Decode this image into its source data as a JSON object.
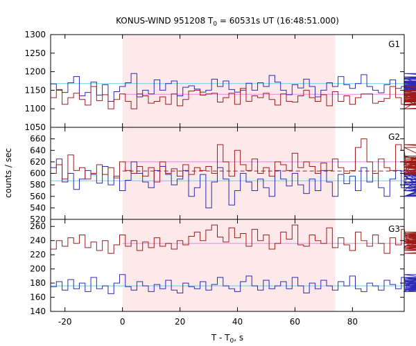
{
  "chart_data": {
    "type": "line",
    "title_parts": [
      "KONUS-WIND 951208 T",
      "0",
      " = 60531s UT (16:48:51.000)"
    ],
    "xlabel_parts": [
      "T - T",
      "0",
      ", s"
    ],
    "ylabel": "counts / sec",
    "xlim": [
      -25,
      98
    ],
    "bin_width": 2.0,
    "bin_start": -25,
    "x_ticks": [
      -20,
      0,
      20,
      40,
      60,
      80
    ],
    "x_tick_labels": [
      "-20",
      "0",
      "20",
      "40",
      "60",
      "80"
    ],
    "shaded_interval": [
      0,
      74
    ],
    "colors": {
      "series_upper": "#a01a1a",
      "series_lower": "#2a2ab4",
      "ref_upper": "#ee82ee",
      "ref_lower": "#5bd5e8",
      "shade": "#fde8ea"
    },
    "panels": [
      {
        "label": "G1",
        "ylim": [
          1050,
          1300
        ],
        "y_ticks": [
          1050,
          1100,
          1150,
          1200,
          1250,
          1300
        ],
        "series": [
          {
            "color_key": "series_lower",
            "values": [
              1167,
              1152,
              1144,
              1170,
              1187,
              1135,
              1144,
              1172,
              1137,
              1165,
              1120,
              1146,
              1160,
              1170,
              1195,
              1132,
              1150,
              1140,
              1178,
              1150,
              1168,
              1175,
              1135,
              1158,
              1162,
              1153,
              1145,
              1150,
              1180,
              1160,
              1175,
              1152,
              1145,
              1150,
              1169,
              1150,
              1170,
              1160,
              1190,
              1172,
              1150,
              1138,
              1165,
              1156,
              1180,
              1160,
              1132,
              1150,
              1170,
              1160,
              1187,
              1165,
              1155,
              1168,
              1192,
              1160,
              1150,
              1143,
              1165,
              1178,
              1155,
              1160,
              1150,
              1175,
              1165,
              1145,
              1182,
              1155,
              1152,
              1175,
              1162,
              1150,
              1170,
              1160,
              1148,
              1155,
              1160,
              1157,
              1165,
              1140,
              1175,
              1152,
              1160,
              1195,
              1172,
              1140,
              1160,
              1175,
              1150,
              1165,
              1186,
              1160,
              1170,
              1150,
              1168,
              1173,
              1160,
              1175,
              1183,
              1165,
              1150,
              1170,
              1180,
              1162,
              1152,
              1160,
              1175,
              1168,
              1150,
              1165,
              1170,
              1155,
              1160,
              1172,
              1148,
              1160,
              1170,
              1165,
              1158,
              1180,
              1160,
              1152,
              1170
            ]
          },
          {
            "color_key": "series_upper",
            "values": [
              1130,
              1150,
              1112,
              1130,
              1142,
              1125,
              1110,
              1160,
              1122,
              1138,
              1100,
              1125,
              1140,
              1120,
              1100,
              1140,
              1135,
              1115,
              1120,
              1132,
              1112,
              1140,
              1108,
              1125,
              1148,
              1150,
              1137,
              1140,
              1142,
              1118,
              1130,
              1142,
              1112,
              1155,
              1120,
              1135,
              1130,
              1142,
              1125,
              1110,
              1140,
              1120,
              1118,
              1135,
              1150,
              1130,
              1120,
              1138,
              1108,
              1146,
              1120,
              1135,
              1112,
              1130,
              1140,
              1140,
              1115,
              1120,
              1128,
              1160,
              1130,
              1112,
              1142,
              1135,
              1125,
              1100,
              1140,
              1118,
              1130,
              1150,
              1120,
              1140,
              1125,
              1112,
              1128,
              1138,
              1122,
              1140,
              1136,
              1120,
              1130,
              1148,
              1110,
              1125,
              1140,
              1100,
              1118,
              1140,
              1160,
              1130,
              1120,
              1125,
              1138,
              1110,
              1132,
              1140,
              1125,
              1136,
              1150,
              1120,
              1130,
              1112,
              1130,
              1140,
              1132,
              1125,
              1150,
              1130,
              1138,
              1140,
              1125,
              1142,
              1120,
              1128,
              1135,
              1140,
              1125,
              1138,
              1130,
              1145,
              1122,
              1130,
              1140
            ]
          }
        ],
        "ref_lines": [
          {
            "y": 1168,
            "color_key": "ref_lower",
            "dashed": false,
            "from": -25,
            "to": 98
          },
          {
            "y": 1139,
            "color_key": "ref_upper",
            "dashed": false,
            "from": 0,
            "to": 98
          }
        ]
      },
      {
        "label": "G2",
        "ylim": [
          520,
          680
        ],
        "y_ticks": [
          520,
          540,
          560,
          580,
          600,
          620,
          640,
          660
        ],
        "series": [
          {
            "color_key": "series_lower",
            "values": [
              610,
              625,
              585,
              600,
              572,
              590,
              605,
              598,
              583,
              612,
              580,
              595,
              570,
              588,
              620,
              600,
              585,
              575,
              605,
              612,
              598,
              580,
              590,
              605,
              560,
              575,
              598,
              540,
              585,
              610,
              590,
              545,
              570,
              600,
              585,
              570,
              590,
              575,
              560,
              605,
              590,
              578,
              600,
              580,
              565,
              590,
              570,
              605,
              585,
              560,
              598,
              582,
              595,
              570,
              610,
              585,
              600,
              575,
              560,
              590,
              605,
              575,
              598,
              585,
              570,
              600,
              580,
              595,
              560,
              590,
              605,
              575,
              560,
              598,
              585,
              570,
              560,
              600,
              585,
              575,
              598,
              605,
              580,
              570,
              590,
              575,
              600,
              585,
              560,
              598,
              575,
              590,
              600,
              560,
              585,
              570,
              598,
              580,
              600,
              590,
              575,
              610,
              585,
              590,
              575,
              600,
              590,
              570,
              560,
              585,
              598,
              580,
              570,
              600,
              590,
              585,
              575,
              598,
              560,
              585,
              600,
              575,
              590
            ]
          },
          {
            "color_key": "series_upper",
            "values": [
              600,
              615,
              590,
              632,
              605,
              610,
              590,
              600,
              615,
              598,
              610,
              592,
              620,
              605,
              600,
              612,
              595,
              610,
              585,
              620,
              600,
              608,
              595,
              615,
              598,
              610,
              605,
              612,
              600,
              650,
              620,
              595,
              640,
              615,
              605,
              625,
              600,
              610,
              595,
              620,
              615,
              605,
              635,
              610,
              620,
              612,
              600,
              618,
              605,
              625,
              610,
              600,
              605,
              645,
              660,
              620,
              600,
              625,
              610,
              605,
              650,
              640,
              600,
              615,
              630,
              620,
              605,
              650,
              645,
              610,
              600,
              620,
              605,
              612,
              630,
              600,
              615,
              622,
              605,
              610,
              600,
              625,
              612,
              598,
              605,
              620,
              600,
              610,
              628,
              605,
              615,
              600,
              622,
              610,
              605,
              618,
              600,
              612,
              605,
              615,
              620,
              600,
              610,
              605,
              618,
              600,
              612,
              620,
              605,
              600,
              615,
              610,
              605,
              618,
              600,
              612,
              605,
              620,
              610,
              605,
              615,
              600,
              612
            ]
          }
        ],
        "ref_lines": [
          {
            "y": 587,
            "color_key": "ref_lower",
            "dashed": false,
            "from": -25,
            "to": 98
          },
          {
            "y": 604,
            "color_key": "series_upper",
            "dashed": true,
            "from": 0,
            "to": 98
          },
          {
            "y": 620,
            "color_key": "ref_upper",
            "dashed": false,
            "from": 0,
            "to": 98
          }
        ]
      },
      {
        "label": "G3",
        "ylim": [
          140,
          270
        ],
        "y_ticks": [
          140,
          160,
          180,
          200,
          220,
          240,
          260
        ],
        "series": [
          {
            "color_key": "series_upper",
            "values": [
              228,
              240,
              232,
              244,
              236,
              248,
              230,
              238,
              226,
              240,
              222,
              234,
              248,
              232,
              240,
              226,
              238,
              230,
              244,
              232,
              236,
              228,
              240,
              234,
              246,
              252,
              240,
              255,
              262,
              245,
              238,
              258,
              244,
              250,
              232,
              256,
              240,
              248,
              228,
              236,
              252,
              242,
              262,
              234,
              232,
              248,
              240,
              236,
              258,
              230,
              244,
              234,
              226,
              252,
              240,
              232,
              248,
              236,
              222,
              244,
              234,
              256,
              240,
              230,
              248,
              236,
              242,
              232,
              238,
              246,
              240,
              232,
              250,
              238,
              228,
              244,
              236,
              248,
              232,
              240,
              226,
              238,
              250,
              240,
              230,
              246,
              236,
              244,
              232,
              240,
              228,
              252,
              238,
              232,
              246,
              240,
              230,
              244,
              236,
              222,
              240,
              248,
              230,
              238,
              222,
              236,
              246,
              232,
              226,
              240,
              250,
              236,
              242,
              226,
              236,
              248,
              240,
              230,
              244,
              238,
              232,
              240,
              236
            ]
          },
          {
            "color_key": "series_lower",
            "values": [
              175,
              182,
              170,
              185,
              172,
              180,
              168,
              188,
              172,
              176,
              165,
              180,
              192,
              175,
              170,
              182,
              176,
              168,
              178,
              172,
              184,
              170,
              166,
              180,
              175,
              172,
              182,
              170,
              178,
              188,
              176,
              172,
              168,
              182,
              190,
              176,
              170,
              184,
              172,
              176,
              182,
              172,
              188,
              176,
              166,
              180,
              172,
              184,
              176,
              170,
              182,
              176,
              190,
              172,
              168,
              180,
              176,
              170,
              184,
              178,
              172,
              188,
              172,
              168,
              180,
              176,
              184,
              170,
              176,
              192,
              182,
              170,
              178,
              188,
              172,
              176,
              184,
              168,
              180,
              172,
              188,
              176,
              182,
              170,
              176,
              186,
              172,
              180,
              174,
              188,
              176,
              170,
              184,
              176,
              172,
              188,
              176,
              180,
              172,
              184,
              170,
              176,
              188,
              172,
              180,
              176,
              184,
              172,
              186,
              176,
              180,
              172,
              184,
              176,
              188,
              172,
              180,
              176,
              184,
              172,
              178,
              186,
              176
            ]
          }
        ],
        "ref_lines": [
          {
            "y": 236,
            "color_key": "ref_upper",
            "dashed": false,
            "from": 0,
            "to": 98
          },
          {
            "y": 176,
            "color_key": "ref_lower",
            "dashed": false,
            "from": -25,
            "to": 98
          }
        ]
      }
    ]
  }
}
